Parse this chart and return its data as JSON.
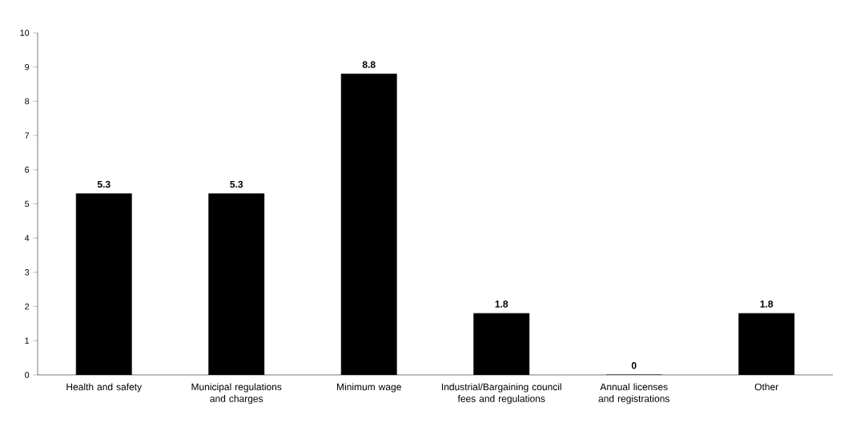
{
  "chart_data": {
    "type": "bar",
    "categories": [
      "Health and safety",
      "Municipal regulations and charges",
      "Minimum wage",
      "Industrial/Bargaining council fees and regulations",
      "Annual licenses and registrations",
      "Other"
    ],
    "values": [
      5.3,
      5.3,
      8.8,
      1.8,
      0,
      1.8
    ],
    "color": "#000000",
    "ylim": [
      0,
      10
    ],
    "yticks": [
      0,
      1,
      2,
      3,
      4,
      5,
      6,
      7,
      8,
      9,
      10
    ],
    "data_labels": true
  }
}
